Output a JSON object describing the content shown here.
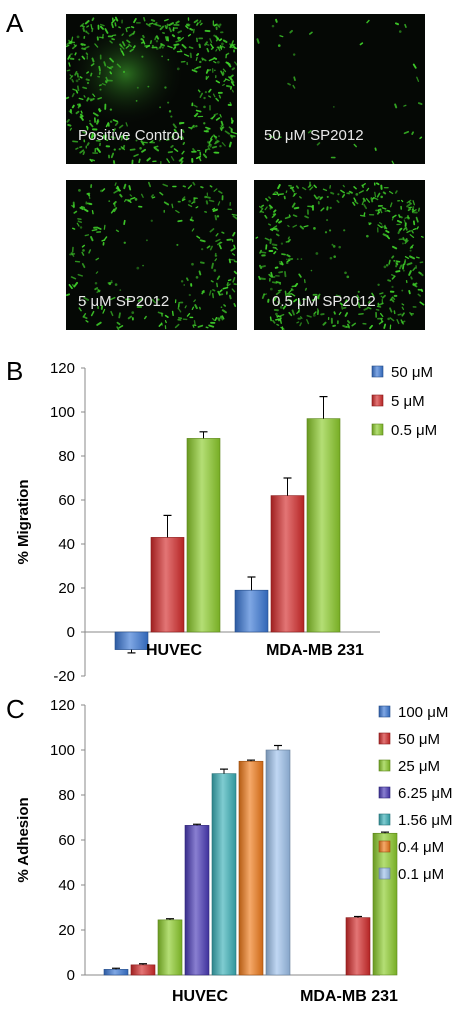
{
  "panels": {
    "a": {
      "letter": "A",
      "images": [
        {
          "label": "Positive Control",
          "density": 1.0
        },
        {
          "label": "50 μM  SP2012",
          "density": 0.08
        },
        {
          "label": "5 μM  SP2012",
          "density": 0.55
        },
        {
          "label": "0.5 μM  SP2012",
          "density": 0.85
        }
      ],
      "colors": {
        "cells": "#3fcf2a",
        "background": "#050805"
      }
    },
    "b": {
      "letter": "B"
    },
    "c": {
      "letter": "C"
    }
  },
  "chart_data": [
    {
      "type": "bar",
      "ylabel": "% Migration",
      "ylim": [
        -20,
        120
      ],
      "yticks": [
        "120",
        "100",
        "80",
        "60",
        "40",
        "20",
        "0",
        "-20"
      ],
      "categories": [
        "HUVEC",
        "MDA-MB 231"
      ],
      "legend_position": "top-right",
      "series": [
        {
          "name": "50 μM",
          "color": "#3a78d6",
          "values": [
            -8,
            19
          ],
          "errors": [
            1.5,
            6
          ]
        },
        {
          "name": "5 μM",
          "color": "#d42a2a",
          "values": [
            43,
            62
          ],
          "errors": [
            10,
            8
          ]
        },
        {
          "name": "0.5 μM",
          "color": "#8ccc2a",
          "values": [
            88,
            97
          ],
          "errors": [
            3,
            10
          ]
        }
      ]
    },
    {
      "type": "bar",
      "ylabel": "% Adhesion",
      "ylim": [
        0,
        120
      ],
      "yticks": [
        "120",
        "100",
        "80",
        "60",
        "40",
        "20",
        "0"
      ],
      "categories": [
        "HUVEC",
        "MDA-MB 231"
      ],
      "legend_position": "top-right",
      "series": [
        {
          "name": "100 μM",
          "color": "#3a78d6",
          "values": [
            2.5,
            null
          ],
          "errors": [
            0.5,
            null
          ]
        },
        {
          "name": "50 μM",
          "color": "#d42a2a",
          "values": [
            4.5,
            25.5
          ],
          "errors": [
            0.5,
            0.5
          ]
        },
        {
          "name": "25 μM",
          "color": "#8ccc2a",
          "values": [
            24.5,
            63
          ],
          "errors": [
            0.5,
            0.5
          ]
        },
        {
          "name": "6.25 μM",
          "color": "#4a3ab8",
          "values": [
            66.5,
            null
          ],
          "errors": [
            0.5,
            null
          ]
        },
        {
          "name": "1.56 μM",
          "color": "#3ab0b8",
          "values": [
            89.5,
            null
          ],
          "errors": [
            2,
            null
          ]
        },
        {
          "name": "0.4 μM",
          "color": "#f07a1a",
          "values": [
            95,
            null
          ],
          "errors": [
            0.5,
            null
          ]
        },
        {
          "name": "0.1 μM",
          "color": "#9ec2ec",
          "values": [
            100,
            null
          ],
          "errors": [
            2,
            null
          ]
        }
      ]
    }
  ]
}
